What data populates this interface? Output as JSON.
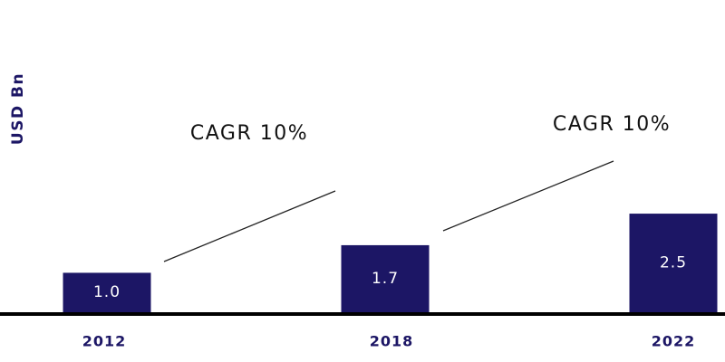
{
  "chart_data": {
    "type": "bar",
    "y_label": "USD Bn",
    "categories": [
      "2012",
      "2018",
      "2022"
    ],
    "values": [
      1,
      1.7,
      2.5
    ],
    "value_labels": [
      "1.0",
      "1.7",
      "2.5"
    ],
    "color": "#1c1665",
    "ylim": [
      0,
      7
    ],
    "annotations": [
      "CAGR 10%",
      "CAGR 10%"
    ]
  }
}
